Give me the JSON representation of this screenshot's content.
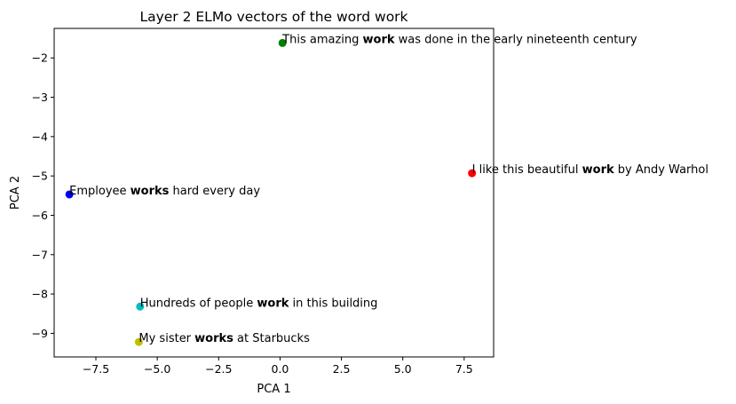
{
  "chart_data": {
    "type": "scatter",
    "title": "Layer 2 ELMo vectors of the word work",
    "xlabel": "PCA 1",
    "ylabel": "PCA 2",
    "xlim": [
      -9.2,
      8.7
    ],
    "ylim": [
      -9.6,
      -1.25
    ],
    "xticks": [
      -7.5,
      -5.0,
      -2.5,
      0.0,
      2.5,
      5.0,
      7.5
    ],
    "xtick_labels": [
      "−7.5",
      "−5.0",
      "−2.5",
      "0.0",
      "2.5",
      "5.0",
      "7.5"
    ],
    "yticks": [
      -2,
      -3,
      -4,
      -5,
      -6,
      -7,
      -8,
      -9
    ],
    "ytick_labels": [
      "−2",
      "−3",
      "−4",
      "−5",
      "−6",
      "−7",
      "−8",
      "−9"
    ],
    "grid": false,
    "points": [
      {
        "x": 0.1,
        "y": -1.62,
        "color": "#008000",
        "label": {
          "pre": "This amazing ",
          "bold": "work",
          "post": " was done in the early nineteenth century"
        }
      },
      {
        "x": 7.82,
        "y": -4.93,
        "color": "#ff0000",
        "label": {
          "pre": "I like this beautiful ",
          "bold": "work",
          "post": " by Andy Warhol"
        }
      },
      {
        "x": -8.58,
        "y": -5.47,
        "color": "#0000ff",
        "label": {
          "pre": "Employee ",
          "bold": "works",
          "post": " hard every day"
        }
      },
      {
        "x": -5.7,
        "y": -8.32,
        "color": "#00bfbf",
        "label": {
          "pre": "Hundreds of people ",
          "bold": "work",
          "post": " in this building"
        }
      },
      {
        "x": -5.75,
        "y": -9.22,
        "color": "#bfbf00",
        "label": {
          "pre": "My sister ",
          "bold": "works",
          "post": " at Starbucks"
        }
      }
    ]
  }
}
